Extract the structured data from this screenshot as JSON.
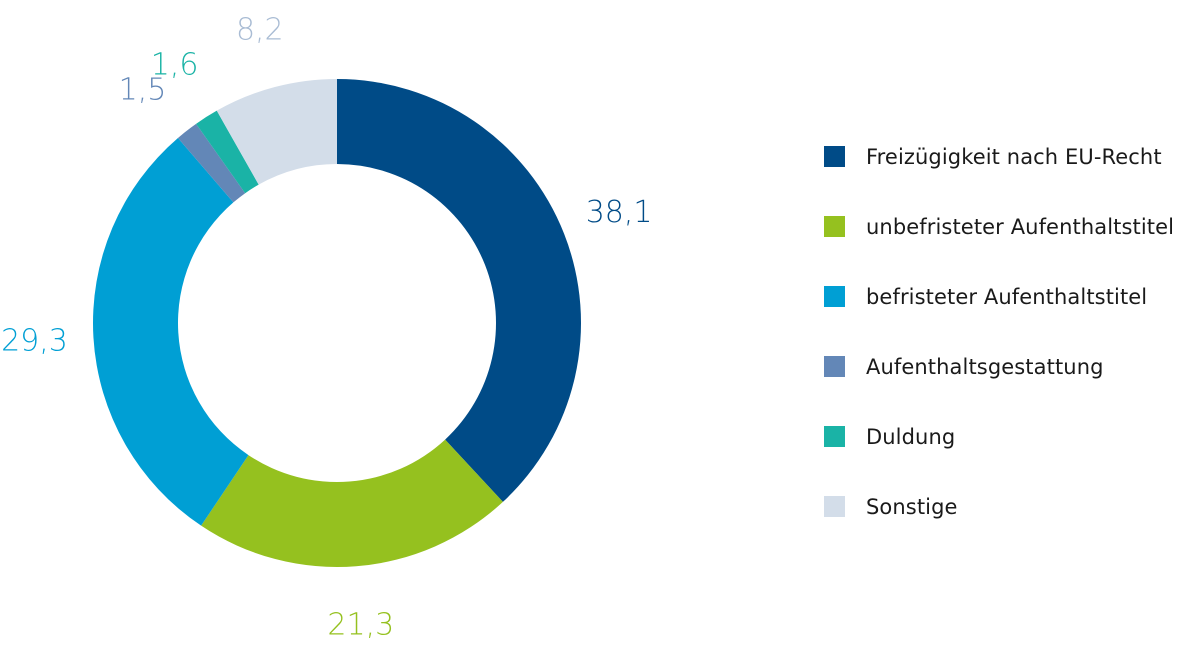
{
  "chart_data": {
    "type": "pie",
    "title": "",
    "donut": true,
    "legend_position": "right",
    "categories": [
      "Freizügigkeit nach EU-Recht",
      "unbefristeter Aufenthaltstitel",
      "befristeter Aufenthaltstitel",
      "Aufenthaltsgestattung",
      "Duldung",
      "Sonstige"
    ],
    "values": [
      38.1,
      21.3,
      29.3,
      1.5,
      1.6,
      8.2
    ],
    "labels": [
      "38,1",
      "21,3",
      "29,3",
      "1,5",
      "1,6",
      "8,2"
    ],
    "colors": [
      "#004b87",
      "#95c11f",
      "#009fd4",
      "#6387b7",
      "#1ab3a6",
      "#d3dde9"
    ],
    "label_colors": [
      "#004b87",
      "#95c11f",
      "#009fd4",
      "#6387b7",
      "#1ab3a6",
      "#a9bcd4"
    ]
  }
}
